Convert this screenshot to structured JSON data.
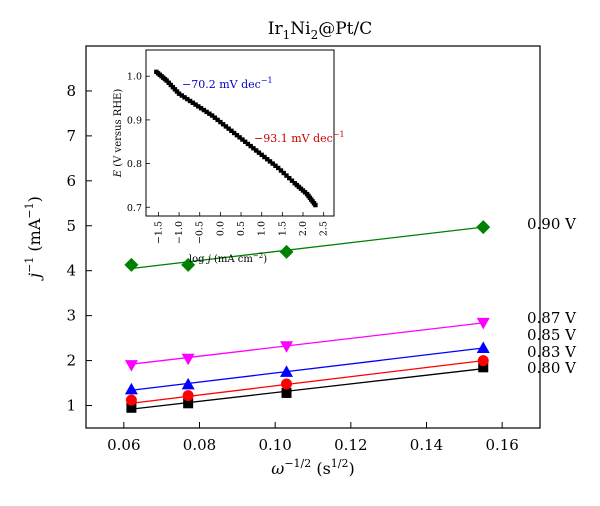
{
  "chart_data": {
    "type": "scatter",
    "title": "Ir1Ni2@Pt/C",
    "title_parts": {
      "base1": "Ir",
      "sub1": "1",
      "base2": "Ni",
      "sub2": "2",
      "rest": "@Pt/C"
    },
    "xlabel": "ω−1/2 (s1/2)",
    "xlabel_parts": {
      "sym": "ω",
      "sup": "−1/2",
      "open": " (s",
      "unit_sup": "1/2",
      "close": ")"
    },
    "ylabel": "j−1 (mA−1)",
    "ylabel_parts": {
      "sym": "j",
      "sup": "−1",
      "open": " (mA",
      "unit_sup": "−1",
      "close": ")"
    },
    "xlim": [
      0.05,
      0.17
    ],
    "ylim": [
      0.5,
      9
    ],
    "xticks": [
      "0.06",
      "0.08",
      "0.10",
      "0.12",
      "0.14",
      "0.16"
    ],
    "yticks": [
      "1",
      "2",
      "3",
      "4",
      "5",
      "6",
      "7",
      "8"
    ],
    "x": [
      0.062,
      0.077,
      0.103,
      0.155
    ],
    "series": [
      {
        "name": "0.80 V",
        "values": [
          0.95,
          1.05,
          1.28,
          1.85
        ],
        "fit": [
          0.92,
          1.82
        ],
        "color": "#000000",
        "marker": "square"
      },
      {
        "name": "0.83 V",
        "values": [
          1.12,
          1.22,
          1.48,
          2.0
        ],
        "fit": [
          1.05,
          2.0
        ],
        "color": "#ff0000",
        "marker": "circle"
      },
      {
        "name": "0.85 V",
        "values": [
          1.36,
          1.47,
          1.75,
          2.28
        ],
        "fit": [
          1.34,
          2.28
        ],
        "color": "#0000ff",
        "marker": "triangle-up"
      },
      {
        "name": "0.87 V",
        "values": [
          1.9,
          2.04,
          2.32,
          2.84
        ],
        "fit": [
          1.92,
          2.84
        ],
        "color": "#ff00ff",
        "marker": "triangle-down"
      },
      {
        "name": "0.90 V",
        "values": [
          4.13,
          4.13,
          4.42,
          4.97
        ],
        "fit": [
          4.05,
          4.97
        ],
        "color": "#008000",
        "marker": "diamond"
      }
    ],
    "inset": {
      "type": "line",
      "xlabel": "log j (mA cm−2)",
      "xlabel_parts": {
        "pre": "log ",
        "sym": "j",
        "open": " (mA cm",
        "sup": "−2",
        "close": ")"
      },
      "ylabel": "E (V versus RHE)",
      "ylabel_parts": {
        "sym": "E",
        "rest": " (V versus RHE)"
      },
      "xlim": [
        -1.8,
        2.75
      ],
      "ylim": [
        0.68,
        1.06
      ],
      "xticks": [
        "−1.5",
        "−1.0",
        "−0.5",
        "0.0",
        "0.5",
        "1.0",
        "1.5",
        "2.0",
        "2.5"
      ],
      "yticks": [
        "0.7",
        "0.8",
        "0.9",
        "1.0"
      ],
      "curve_x": [
        -1.55,
        -1.3,
        -1.0,
        -0.6,
        -0.2,
        0.2,
        0.6,
        1.0,
        1.4,
        1.8,
        2.1,
        2.3
      ],
      "curve_y": [
        1.01,
        0.99,
        0.96,
        0.935,
        0.91,
        0.88,
        0.85,
        0.82,
        0.79,
        0.755,
        0.73,
        0.705
      ],
      "color": "#000000",
      "annotations": [
        {
          "text": "−70.2 mV dec−1",
          "parts": {
            "main": "−70.2 mV dec",
            "sup": "−1"
          },
          "color": "#0000cc"
        },
        {
          "text": "−93.1 mV dec−1",
          "parts": {
            "main": "−93.1 mV dec",
            "sup": "−1"
          },
          "color": "#cc0000"
        }
      ]
    }
  }
}
